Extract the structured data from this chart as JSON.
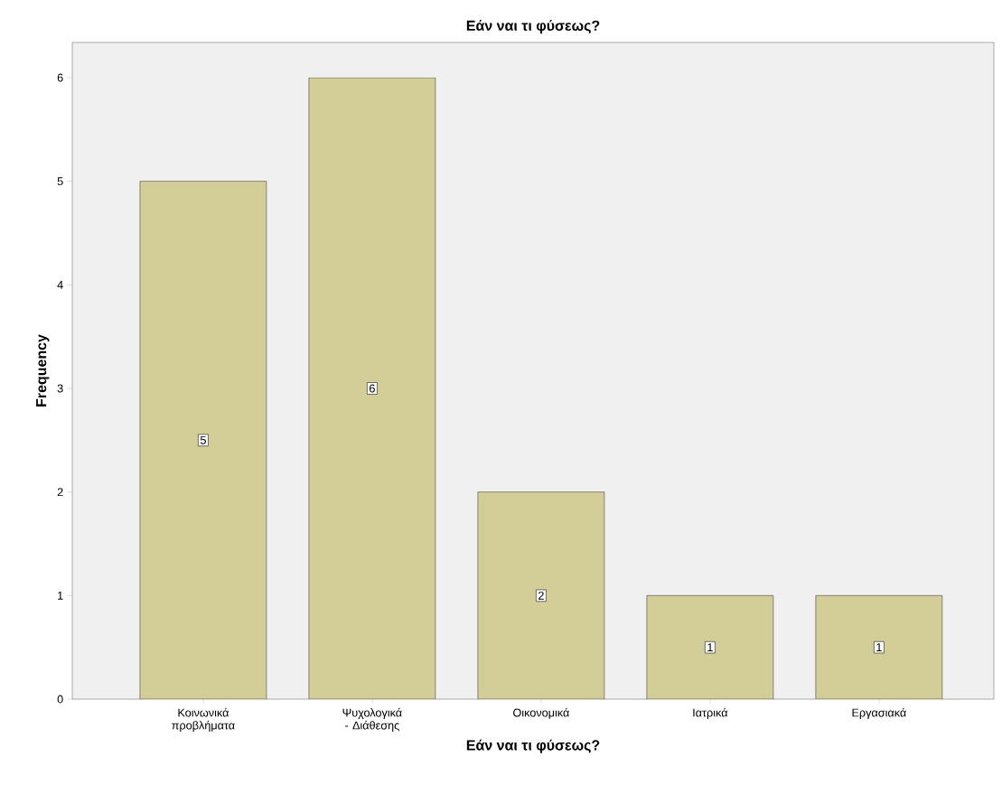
{
  "chart_data": {
    "type": "bar",
    "title": "Εάν ναι τι φύσεως?",
    "xlabel": "Εάν ναι τι φύσεως?",
    "ylabel": "Frequency",
    "categories": [
      "Κοινωνικά προβλήματα",
      "Ψυχολογικά - Διάθεσης",
      "Οικονομικά",
      "Ιατρικά",
      "Εργασιακά"
    ],
    "values": [
      5,
      6,
      2,
      1,
      1
    ],
    "color": "#d3ce97",
    "ylim": [
      0,
      6.34
    ],
    "yticks": [
      0,
      1,
      2,
      3,
      4,
      5,
      6
    ],
    "data_labels": true
  }
}
